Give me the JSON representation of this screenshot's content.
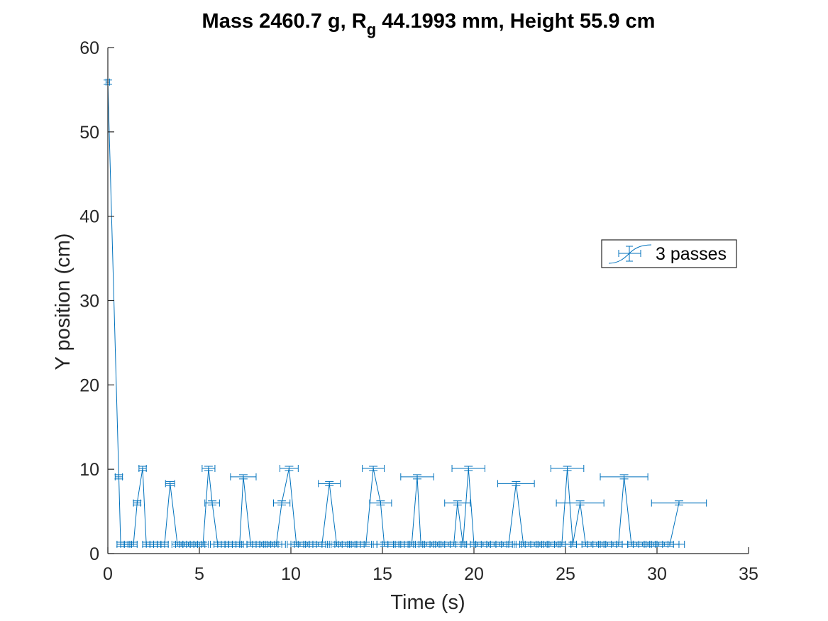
{
  "chart_data": {
    "type": "line",
    "title": {
      "prefix": "Mass 2460.7 g, R",
      "subscript": "g",
      "suffix": " 44.1993 mm,  Height 55.9 cm"
    },
    "xlabel": "Time (s)",
    "ylabel": "Y position (cm)",
    "xlim": [
      0,
      35
    ],
    "ylim": [
      0,
      60
    ],
    "xticks": [
      0,
      5,
      10,
      15,
      20,
      25,
      30,
      35
    ],
    "yticks": [
      0,
      10,
      20,
      30,
      40,
      50,
      60
    ],
    "grid": false,
    "legend_position": "right-middle",
    "color": "#0072BD",
    "series": [
      {
        "name": "3 passes",
        "x": [
          0.0,
          0.6,
          0.7,
          0.9,
          1.1,
          1.4,
          1.6,
          1.9,
          2.1,
          2.3,
          2.5,
          2.7,
          2.9,
          3.1,
          3.4,
          3.8,
          4.0,
          4.2,
          4.4,
          4.6,
          4.8,
          5.0,
          5.2,
          5.5,
          5.7,
          6.0,
          6.2,
          6.4,
          6.6,
          6.8,
          7.0,
          7.2,
          7.4,
          7.8,
          8.1,
          8.4,
          8.6,
          8.8,
          9.0,
          9.2,
          9.5,
          9.9,
          10.3,
          10.5,
          10.7,
          10.9,
          11.2,
          11.5,
          11.7,
          12.1,
          12.5,
          12.7,
          13.0,
          13.2,
          13.4,
          13.8,
          14.1,
          14.5,
          14.9,
          15.1,
          15.3,
          15.6,
          15.9,
          16.2,
          16.6,
          16.9,
          17.1,
          17.4,
          17.7,
          18.0,
          18.3,
          18.6,
          18.9,
          19.1,
          19.4,
          19.7,
          20.0,
          20.2,
          20.5,
          20.8,
          21.1,
          21.4,
          21.6,
          21.9,
          22.3,
          22.7,
          23.0,
          23.3,
          23.6,
          23.9,
          24.2,
          24.5,
          24.8,
          25.1,
          25.4,
          25.8,
          26.1,
          26.4,
          26.7,
          27.0,
          27.3,
          27.6,
          27.9,
          28.2,
          28.6,
          28.9,
          29.2,
          29.5,
          29.8,
          30.1,
          30.4,
          30.7,
          31.2
        ],
        "y": [
          55.9,
          9.1,
          1.1,
          1.1,
          1.1,
          1.1,
          6.0,
          10.1,
          1.1,
          1.1,
          1.1,
          1.1,
          1.1,
          1.1,
          8.3,
          1.1,
          1.1,
          1.1,
          1.1,
          1.1,
          1.1,
          1.1,
          1.1,
          10.1,
          6.0,
          1.1,
          1.1,
          1.1,
          1.1,
          1.1,
          1.1,
          1.1,
          9.1,
          1.1,
          1.1,
          1.1,
          1.1,
          1.1,
          1.1,
          1.1,
          6.0,
          10.1,
          1.1,
          1.1,
          1.1,
          1.1,
          1.1,
          1.1,
          1.1,
          8.3,
          1.1,
          1.1,
          1.1,
          1.1,
          1.1,
          1.1,
          1.1,
          10.1,
          6.0,
          1.1,
          1.1,
          1.1,
          1.1,
          1.1,
          1.1,
          9.1,
          1.1,
          1.1,
          1.1,
          1.1,
          1.1,
          1.1,
          1.1,
          6.0,
          1.1,
          10.1,
          1.1,
          1.1,
          1.1,
          1.1,
          1.1,
          1.1,
          1.1,
          1.1,
          8.3,
          1.1,
          1.1,
          1.1,
          1.1,
          1.1,
          1.1,
          1.1,
          1.1,
          10.1,
          1.1,
          6.0,
          1.1,
          1.1,
          1.1,
          1.1,
          1.1,
          1.1,
          1.1,
          9.1,
          1.1,
          1.1,
          1.1,
          1.1,
          1.1,
          1.1,
          1.1,
          1.1,
          6.0
        ],
        "xerr": [
          0.1,
          0.2,
          0.2,
          0.2,
          0.2,
          0.2,
          0.2,
          0.2,
          0.2,
          0.2,
          0.2,
          0.2,
          0.2,
          0.2,
          0.25,
          0.3,
          0.3,
          0.3,
          0.3,
          0.3,
          0.3,
          0.3,
          0.3,
          0.35,
          0.4,
          0.4,
          0.4,
          0.4,
          0.4,
          0.4,
          0.4,
          0.4,
          0.7,
          0.5,
          0.5,
          0.5,
          0.5,
          0.5,
          0.5,
          0.5,
          0.45,
          0.5,
          0.5,
          0.5,
          0.5,
          0.5,
          0.5,
          0.5,
          0.5,
          0.6,
          0.6,
          0.6,
          0.6,
          0.6,
          0.6,
          0.6,
          0.6,
          0.6,
          0.6,
          0.6,
          0.6,
          0.6,
          0.6,
          0.6,
          0.6,
          0.9,
          0.7,
          0.7,
          0.7,
          0.7,
          0.7,
          0.7,
          0.7,
          0.7,
          0.7,
          0.9,
          0.7,
          0.7,
          0.7,
          0.7,
          0.7,
          0.7,
          0.7,
          0.7,
          1.0,
          0.8,
          0.8,
          0.8,
          0.8,
          0.8,
          0.8,
          0.8,
          0.8,
          0.9,
          0.8,
          1.3,
          0.8,
          0.8,
          0.8,
          0.8,
          0.8,
          0.8,
          0.8,
          1.3,
          0.8,
          0.8,
          0.8,
          0.8,
          0.8,
          0.8,
          0.8,
          0.8,
          1.5
        ],
        "yerr": 0.25
      }
    ]
  }
}
